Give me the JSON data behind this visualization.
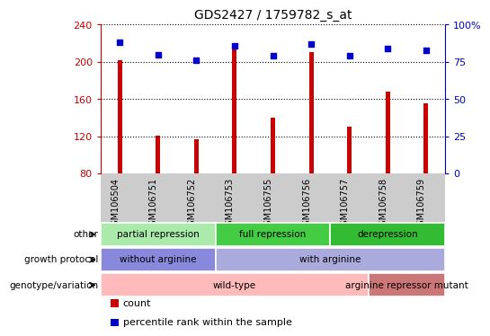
{
  "title": "GDS2427 / 1759782_s_at",
  "samples": [
    "GSM106504",
    "GSM106751",
    "GSM106752",
    "GSM106753",
    "GSM106755",
    "GSM106756",
    "GSM106757",
    "GSM106758",
    "GSM106759"
  ],
  "counts": [
    202,
    121,
    117,
    215,
    140,
    210,
    130,
    168,
    155
  ],
  "percentile_ranks": [
    88,
    80,
    76,
    86,
    79,
    87,
    79,
    84,
    83
  ],
  "ymin": 80,
  "ymax": 240,
  "yticks_left": [
    80,
    120,
    160,
    200,
    240
  ],
  "yticks_right": [
    0,
    25,
    50,
    75,
    100
  ],
  "bar_color": "#cc0000",
  "dot_color": "#0000cc",
  "annotation_rows": [
    {
      "label": "other",
      "segments": [
        {
          "start": 0,
          "end": 3,
          "text": "partial repression",
          "color": "#aaeaaa"
        },
        {
          "start": 3,
          "end": 6,
          "text": "full repression",
          "color": "#44cc44"
        },
        {
          "start": 6,
          "end": 9,
          "text": "derepression",
          "color": "#33bb33"
        }
      ]
    },
    {
      "label": "growth protocol",
      "segments": [
        {
          "start": 0,
          "end": 3,
          "text": "without arginine",
          "color": "#8888dd"
        },
        {
          "start": 3,
          "end": 9,
          "text": "with arginine",
          "color": "#aaaadd"
        }
      ]
    },
    {
      "label": "genotype/variation",
      "segments": [
        {
          "start": 0,
          "end": 7,
          "text": "wild-type",
          "color": "#ffbbbb"
        },
        {
          "start": 7,
          "end": 9,
          "text": "arginine repressor mutant",
          "color": "#cc7777"
        }
      ]
    }
  ],
  "legend_items": [
    {
      "color": "#cc0000",
      "label": "count"
    },
    {
      "color": "#0000cc",
      "label": "percentile rank within the sample"
    }
  ],
  "tick_area_bg": "#cccccc",
  "bar_width": 0.12
}
